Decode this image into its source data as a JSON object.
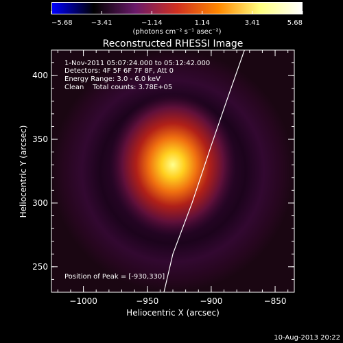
{
  "chart_data": {
    "type": "heatmap",
    "title": "Reconstructed RHESSI Image",
    "xlabel": "Heliocentric X (arcsec)",
    "ylabel": "Heliocentric Y (arcsec)",
    "xlim": [
      -1025,
      -835
    ],
    "ylim": [
      230,
      420
    ],
    "x_ticks": [
      -1000,
      -950,
      -900,
      -850
    ],
    "x_tick_labels": [
      "−1000",
      "−950",
      "−900",
      "−850"
    ],
    "y_ticks": [
      250,
      300,
      350,
      400
    ],
    "y_tick_labels": [
      "250",
      "300",
      "350",
      "400"
    ],
    "colorbar": {
      "range": [
        -5.68,
        5.68
      ],
      "ticks": [
        -5.68,
        -3.41,
        -1.14,
        1.14,
        3.41,
        5.68
      ],
      "tick_labels": [
        "−5.68",
        "−3.41",
        "−1.14",
        "1.14",
        "3.41",
        "5.68"
      ],
      "unit_label": "(photons cm⁻² s⁻¹ asec⁻²)",
      "colors": [
        "#0000ff",
        "#000000",
        "#6a1a6a",
        "#d03020",
        "#ff8800",
        "#ffff80",
        "#ffffff"
      ]
    },
    "peak": [
      -930,
      330
    ],
    "limb_points": [
      [
        -937,
        230
      ],
      [
        -930,
        260
      ],
      [
        -915,
        300
      ],
      [
        -900,
        345
      ],
      [
        -888,
        380
      ],
      [
        -874,
        420
      ]
    ],
    "annotations": {
      "time": "1-Nov-2011 05:07:24.000 to 05:12:42.000",
      "detectors": "Detectors: 4F 5F 6F 7F 8F, Att 0",
      "energy": "Energy Range: 3.0 - 6.0 keV",
      "clean": "Clean    Total counts: 3.78E+05",
      "peak_text": "Position of Peak = [-930,330]"
    },
    "timestamp": "10-Aug-2013 20:22"
  }
}
